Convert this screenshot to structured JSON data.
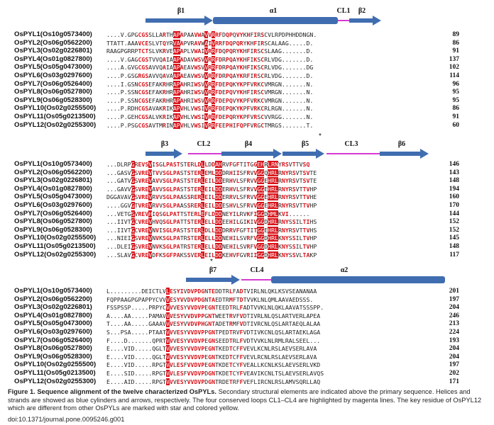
{
  "figure": {
    "caption_bold": "Figure 1. Sequence alignment of the twelve characterized OsPYLs.",
    "caption_text": " Secondary structural elements are indicated above the primary sequence. Helices and strands are showed as blue cylinders and arrows, respectively. The four conserved loops CL1–CL4 are highlighted by magenta lines. The key residue of OsPYL12 which are different from other OsPYLs are marked with star and colored yellow.",
    "doi": "doi:10.1371/journal.pone.0095246.g001",
    "colors": {
      "strand": "#3f6db0",
      "loop": "#d63bd1",
      "identical_bg": "#d9141b",
      "similar_text": "#d9141b",
      "box": "#4040c0",
      "key_residue": "#f2e200"
    },
    "names": [
      "OsPYL1(Os10g0573400)",
      "OsPYL2(Os06g0562200)",
      "OsPYL3(Os02g0226801)",
      "OsPYL4(Os01g0827800)",
      "OsPYL5(Os05g0473000)",
      "OsPYL6(Os03g0297600)",
      "OsPYL7(Os06g0526400)",
      "OsPYL8(Os06g0527800)",
      "OsPYL9(Os06g0528300)",
      "OsPYL10(Os02g0255500)",
      "OsPYL11(Os05g0213500)",
      "OsPYL12(Os02g0255300)"
    ],
    "blocks": [
      {
        "elements": [
          {
            "label": "β1",
            "kind": "strand"
          },
          {
            "label": "α1",
            "kind": "helix"
          },
          {
            "label": "CL1",
            "kind": "loop"
          },
          {
            "label": "β2",
            "kind": "strand"
          }
        ],
        "rows": [
          {
            "seq": "....V.GPGCGSSLLARTHAPAPAAVWAVVRRFDQPQVYKHFIRSCVLRPDPHHDDNGN.",
            "end": "89"
          },
          {
            "seq": "TTATT.AAAVCESLVTQYRVAAPVRAVWAIVRRFDQPQRYKHFIRSCALAAG.....D.",
            "end": "86"
          },
          {
            "seq": "RAAGPGRRPTCTSLVKRVEAPAPLVWAIVRRFDQPQRYKHFIRSCSLAAG.......D.",
            "end": "91"
          },
          {
            "seq": "....V.GAGCGSTVVQAIAAPADAVWSVVRRFDRPQAYKHFIKSCRLVDG.......D.",
            "end": "137"
          },
          {
            "seq": "....A.GVGCGSAVVQAIAAPAEAVWSVVRRFDRPQAYKHFIKSCRLVDG.......DG",
            "end": "102"
          },
          {
            "seq": "....P.GSGRGSAVVQAVAAPAEAVWSVVRRFDRPQAYKRFIRSCRLVDG.......D.",
            "end": "114"
          },
          {
            "seq": "....I.GSNCGSEFAKRHRAPAHRIWSVVRRFDEPQKYKPFVRKCVMRGN.......N.",
            "end": "96"
          },
          {
            "seq": "....P.SSNCGSEFAKRHRAPAHRIWSVVRRFDEPQVYKHFIRSCVMRGN.......N.",
            "end": "95"
          },
          {
            "seq": "....P.SSNCGSEFAKRHRAPAHRIWSVVRRFDEPQVYKPFVRKCVMRGN.......N.",
            "end": "95"
          },
          {
            "seq": "....P.RDHCGSAVAKRIKAPVHLVWSIVRRFDEPQKYKPFVRKCRLRGN.......N.",
            "end": "86"
          },
          {
            "seq": "....P.GEHCGSALVKRIKAPVHLVWSIVRRFDEPQRYKPFVRSCVVRGG.......N.",
            "end": "91"
          },
          {
            "seq": "....P.PSGCGSAVTMRINAPVHLVWSIVRRFEEPHIFQPFVRGCTMRGS.......T.",
            "end": "60"
          }
        ],
        "star_label": "*"
      },
      {
        "elements": [
          {
            "label": "β3",
            "kind": "strand"
          },
          {
            "label": "CL2",
            "kind": "loop"
          },
          {
            "label": "β4",
            "kind": "strand"
          },
          {
            "label": "β5",
            "kind": "strand"
          },
          {
            "label": "CL3",
            "kind": "loop"
          },
          {
            "label": "β6",
            "kind": "strand"
          }
        ],
        "rows": [
          {
            "seq": "...DLRPGREVSVISGLPASTSTERLDLLDDAHRVFGFTITGGEHRLRNYRSVTTVSQ",
            "end": "146"
          },
          {
            "seq": "...GASVGSVREVTVVSGLPASTSTERLEMLDDDRHIISFRVVGGQHRLRNYRSVTSVTE",
            "end": "143"
          },
          {
            "seq": "...GATVGSVREVAVVSGLPASTSTERLEILDDERHVLSFRVVGGEHRLRNYRSVTSVTE",
            "end": "148"
          },
          {
            "seq": "...GAVVGSVREVAVVSGLPASTSTERLEILDDERHVLSFRVVGGEHRLRNYRSVTTVHP",
            "end": "194"
          },
          {
            "seq": "DGGAVAVGSVREVRVVSGLPAASSRERLEILDDERRVLSFRVVGGEHRLRNYRSVTTVHE",
            "end": "160"
          },
          {
            "seq": "....GGVGTVREVRVVSGLPAASSRERLEILDDESHVLSFRVVGGEHRLRNYRSVTTVHP",
            "end": "170"
          },
          {
            "seq": "...VETGSVREVHIQSGLPATTSTERLEFLDDDNEYILRVKFIGGDHMLKVI......",
            "end": "144"
          },
          {
            "seq": "...IIVTGCVREVHVQSGLPATTSTERLELLDDEEHILGIKIVGGDHRLRNYSSILTIHS",
            "end": "152"
          },
          {
            "seq": "...IIVTGCVREVNVISGLPASTSTERLDLLDDDRRVFGFTITGGEHRLRNYRSVTTVHS",
            "end": "152"
          },
          {
            "seq": "...NIEIGSVREVNVKSGLPATRSTERLELLDDNEHILSVRFVGGDHRLKNYSSILTVHP",
            "end": "145"
          },
          {
            "seq": "...DLEIGSVREVNVKSGLPATRSTERLELLDDNEHILSVRFVGGDHRLKNYSSILTVHP",
            "end": "148"
          },
          {
            "seq": "...SLAVGCVREVDFKSGFPAKSSVERLEILDDKEHVFGVRIIGGDHRLKNYSSVLTAKP",
            "end": "117"
          }
        ],
        "star_label": "*"
      },
      {
        "elements": [
          {
            "label": "β7",
            "kind": "strand"
          },
          {
            "label": "CL4",
            "kind": "loop"
          },
          {
            "label": "α2",
            "kind": "helix"
          }
        ],
        "rows": [
          {
            "seq": "L.........DEICTLVLESYIVDVPDGNTEDDTRLFADTVIRLNLQKLKSVSEANANAA",
            "end": "201"
          },
          {
            "seq": "FQPPAAGPGPAPPYCVVVESYVVDVPDGNTAEDTRMFTDTVVKLNLQMLAAVAEDSSS.",
            "end": "197"
          },
          {
            "seq": "FSSPSSP.....PRPYCVVVESYVVDVPEGNTEEDTRLFADTVVKLNLQKLAAVATSSSPP.",
            "end": "204"
          },
          {
            "seq": "A....AA.....PAMAVVVESYVVDVPPGNTWEETRVFVDTIVRLNLQSLARTVERLAPEA",
            "end": "246"
          },
          {
            "seq": "T....AA.....GAAAVVVESYVVDVPHGNTADETRMFVDTIVRCNLQSLARTAEQLALAA",
            "end": "213"
          },
          {
            "seq": "S...PSA.....PTAATVVVESYVVDVPPGNTPEDTRVFVDTIVKCNLQSLARTAEKLAGA",
            "end": "224"
          },
          {
            "seq": "F....D.......QPRTVVVESYVVDVPEGNSEEDTRLFVDTVVKLNLRMLRALSEEL...",
            "end": "193"
          },
          {
            "seq": "E....VID.....QGLTVVVESYVVDVPEGNTKEDTCFFVEVLKCNLRSLAEVSERLAVA",
            "end": "204"
          },
          {
            "seq": "E....VID.....QGLTVVVESYVVDVPEGNTKEDTCFFVEVLRCNLRSLAEVSERLAVA",
            "end": "204"
          },
          {
            "seq": "E....VID.....RPGTVVLESFVVDVPEGNTKDETCYFVEALLKCNLKSLAEVSERLVKD",
            "end": "197"
          },
          {
            "seq": "E....SID.....RPGTVVLESFVVDVPDGNTKDETCYFVEAVIKCNLTSLAEVSERLAVQS",
            "end": "202"
          },
          {
            "seq": "E....AID.....RPGTVVVESYVVDVPDGNTRDETRFFVEFLIRCNLRSLAMVSQRLLAQ",
            "end": "171"
          }
        ],
        "star_label": ""
      }
    ]
  }
}
